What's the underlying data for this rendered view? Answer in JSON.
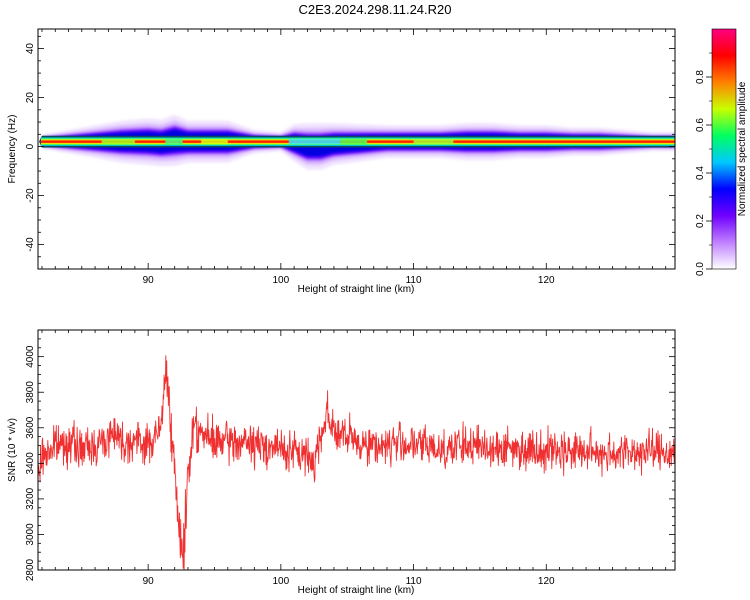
{
  "title": "C2E3.2024.298.11.24.R20",
  "chart_data": [
    {
      "type": "heatmap",
      "xlabel": "Height of straight line (km)",
      "ylabel": "Frequency (Hz)",
      "xlim": [
        81.7,
        129.7
      ],
      "ylim": [
        -50,
        48
      ],
      "xticks": [
        90,
        100,
        110,
        120
      ],
      "yticks": [
        -40,
        -20,
        0,
        20,
        40
      ],
      "band": {
        "center_hz": 2,
        "core_halfwidth_hz": 2,
        "x": [
          82,
          84,
          86,
          88,
          90,
          91,
          92,
          93,
          94,
          96,
          98,
          100,
          101,
          102,
          103,
          104,
          106,
          108,
          110,
          112,
          114,
          116,
          118,
          120,
          122,
          124,
          126,
          128,
          129.7
        ],
        "halo_halfwidth_hz": [
          1.5,
          2.5,
          3.5,
          4.5,
          5,
          5,
          5.5,
          4.5,
          4.5,
          4.5,
          2.5,
          2,
          4,
          5,
          5,
          4.5,
          4,
          3.5,
          3.5,
          3.5,
          4,
          4,
          3.5,
          3.5,
          3,
          3,
          2.5,
          2,
          2
        ],
        "dip_center_hz": [
          2,
          2,
          2,
          2,
          2,
          1.5,
          2.5,
          2,
          2,
          2,
          2,
          2,
          1.5,
          0,
          0,
          1,
          1.5,
          2,
          2,
          2,
          2,
          2,
          2,
          2,
          2,
          2,
          2,
          2,
          2
        ]
      },
      "colorbar": {
        "label": "Normalized spectral amplitude",
        "range": [
          0,
          1
        ],
        "ticks": [
          "0.0",
          "0.2",
          "0.4",
          "0.6",
          "0.8"
        ],
        "colors": [
          "#ffffff",
          "#c080ff",
          "#7000ff",
          "#0000ff",
          "#00c8ff",
          "#00ff60",
          "#c8ff00",
          "#ff8000",
          "#ff0000",
          "#ff0080"
        ]
      }
    },
    {
      "type": "line",
      "xlabel": "Height of straight line (km)",
      "ylabel": "SNR (10 * v/v)",
      "xlim": [
        81.7,
        129.7
      ],
      "ylim": [
        2800,
        4150
      ],
      "xticks": [
        90,
        100,
        110,
        120
      ],
      "yticks": [
        2800,
        3000,
        3200,
        3400,
        3600,
        3800,
        4000
      ],
      "color": "#f03030",
      "series": [
        {
          "x": [
            81.7,
            82,
            83,
            84,
            85,
            86,
            87,
            87.5,
            88,
            89,
            90,
            91,
            91.3,
            91.6,
            92,
            92.3,
            92.7,
            93,
            93.5,
            94,
            95,
            96,
            97,
            98,
            99,
            100,
            101,
            102,
            102.5,
            103,
            103.5,
            104,
            105,
            106,
            107,
            108,
            109,
            110,
            111,
            112,
            114,
            116,
            118,
            120,
            122,
            124,
            126,
            128,
            129.7
          ],
          "y": [
            3300,
            3440,
            3500,
            3520,
            3480,
            3500,
            3540,
            3600,
            3520,
            3530,
            3500,
            3600,
            3920,
            3800,
            3300,
            3030,
            2900,
            3350,
            3660,
            3560,
            3520,
            3520,
            3520,
            3500,
            3500,
            3480,
            3460,
            3440,
            3400,
            3560,
            3700,
            3580,
            3540,
            3520,
            3500,
            3500,
            3520,
            3500,
            3500,
            3480,
            3500,
            3490,
            3480,
            3480,
            3470,
            3460,
            3460,
            3470,
            3460
          ]
        }
      ]
    }
  ]
}
